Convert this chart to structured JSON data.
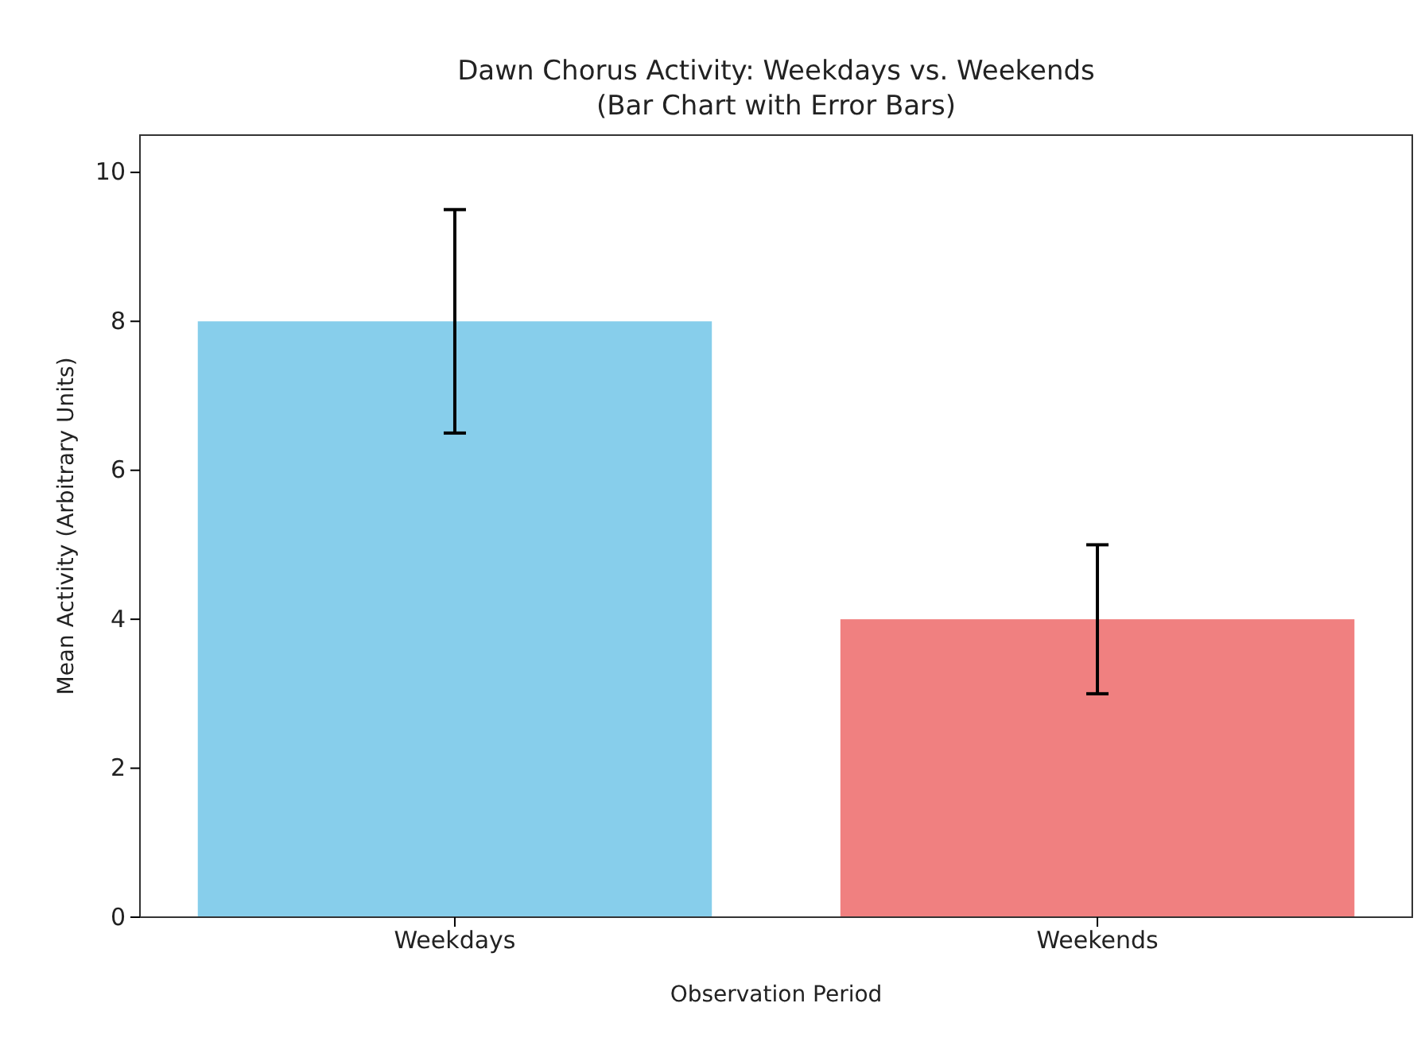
{
  "chart_data": {
    "type": "bar",
    "title": "Dawn Chorus Activity: Weekdays vs. Weekends\n(Bar Chart with Error Bars)",
    "xlabel": "Observation Period",
    "ylabel": "Mean Activity (Arbitrary Units)",
    "categories": [
      "Weekdays",
      "Weekends"
    ],
    "values": [
      8,
      4
    ],
    "colors": [
      "#87ceeb",
      "#f08080"
    ],
    "errors": [
      1.5,
      1
    ],
    "ylim": [
      0,
      10.5
    ],
    "yticks": [
      0,
      2,
      4,
      6,
      8,
      10
    ]
  }
}
